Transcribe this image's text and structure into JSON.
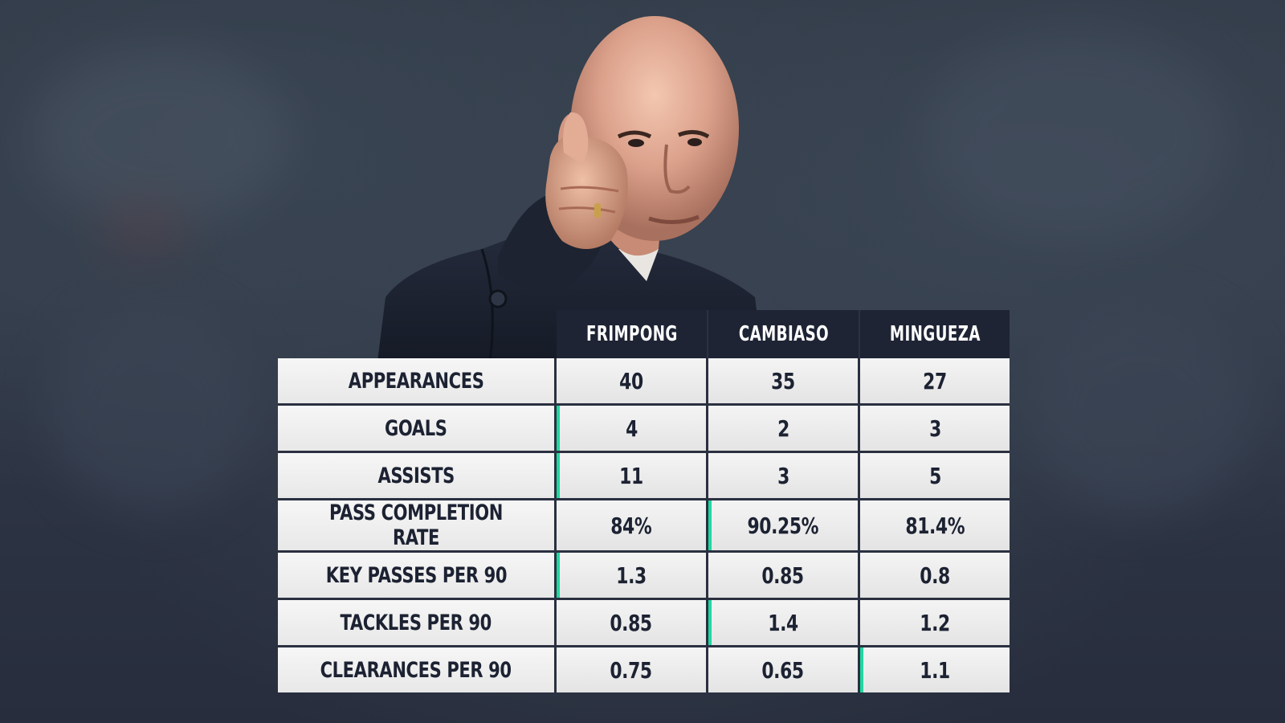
{
  "players": [
    {
      "name": "FRIMPONG"
    },
    {
      "name": "CAMBIASO"
    },
    {
      "name": "MINGUEZA"
    }
  ],
  "rows": [
    {
      "label": "APPEARANCES",
      "values": [
        "40",
        "35",
        "27"
      ],
      "highlight_index": null
    },
    {
      "label": "GOALS",
      "values": [
        "4",
        "2",
        "3"
      ],
      "highlight_index": 0
    },
    {
      "label": "ASSISTS",
      "values": [
        "11",
        "3",
        "5"
      ],
      "highlight_index": 0
    },
    {
      "label": "PASS COMPLETION RATE",
      "values": [
        "84%",
        "90.25%",
        "81.4%"
      ],
      "highlight_index": 1
    },
    {
      "label": "KEY PASSES PER 90",
      "values": [
        "1.3",
        "0.85",
        "0.8"
      ],
      "highlight_index": 0
    },
    {
      "label": "TACKLES PER 90",
      "values": [
        "0.85",
        "1.4",
        "1.2"
      ],
      "highlight_index": 1
    },
    {
      "label": "CLEARANCES PER 90",
      "values": [
        "0.75",
        "0.65",
        "1.1"
      ],
      "highlight_index": 2
    }
  ],
  "colors": {
    "background": "#2f3845",
    "header_bg": "#1e2434",
    "cell_bg": "#f0f0f0",
    "text_dark": "#1c2232",
    "highlight_accent": "#22d6a0"
  },
  "photo": {
    "subject": "bald-man-thumbs-up"
  }
}
